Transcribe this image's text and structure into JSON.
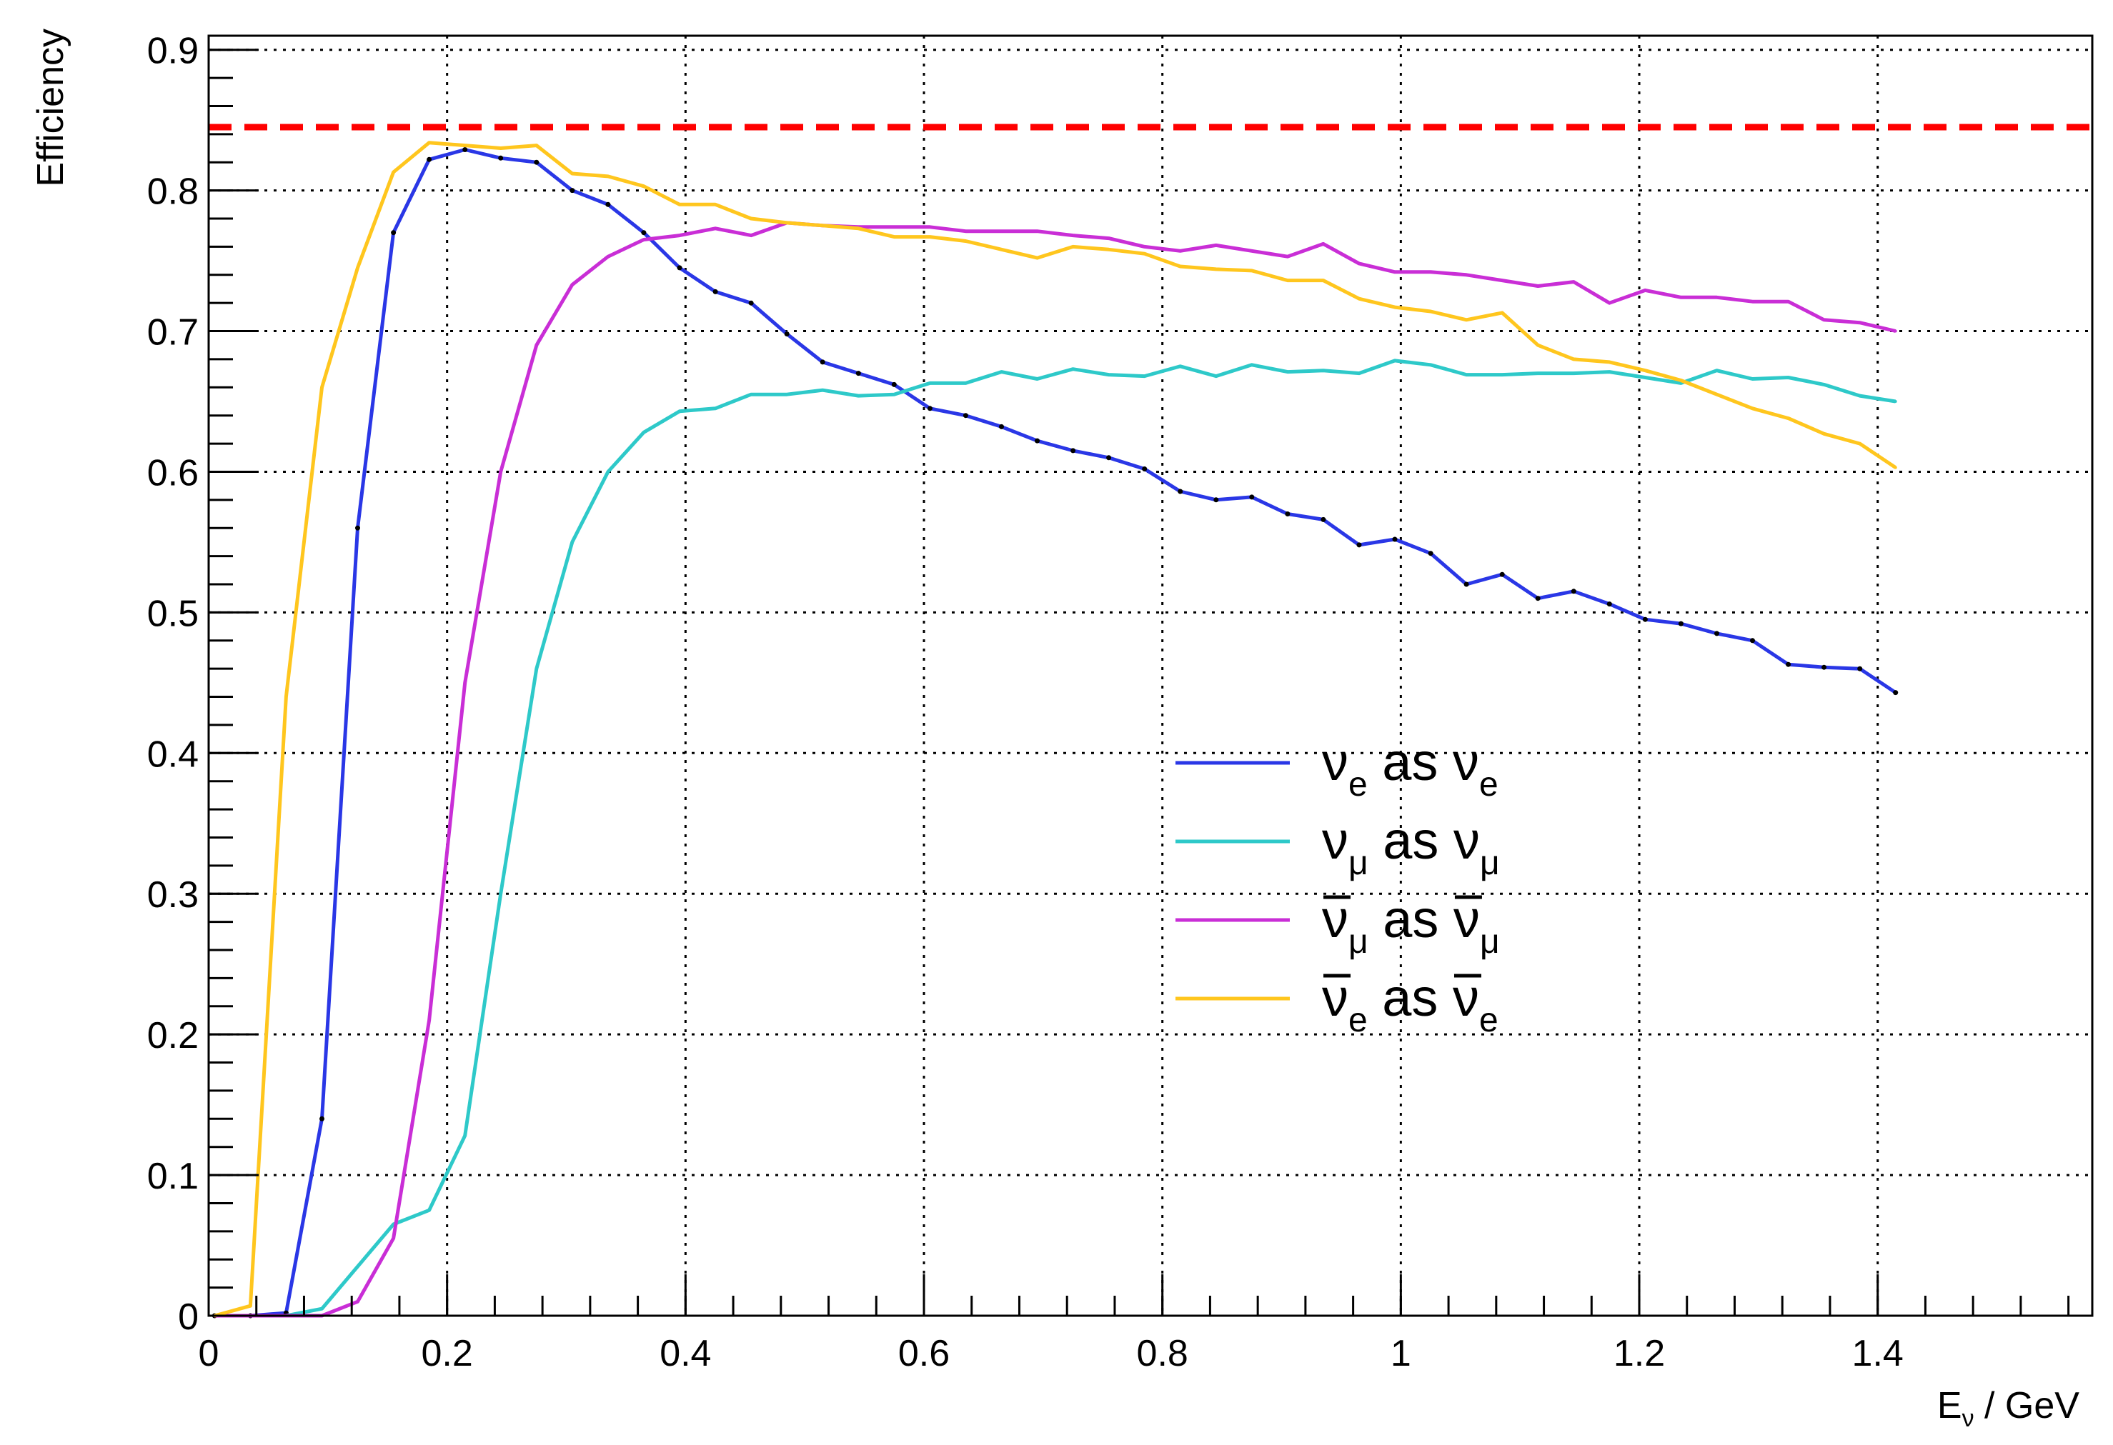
{
  "chart_data": {
    "type": "line",
    "title": "",
    "xlabel": "E",
    "xlabel_sub": "ν",
    "xlabel_unit": " / GeV",
    "ylabel": "Efficiency",
    "xlim": [
      0,
      1.58
    ],
    "ylim": [
      0,
      0.91
    ],
    "x_ticks": [
      "0",
      "0.2",
      "0.4",
      "0.6",
      "0.8",
      "1",
      "1.2",
      "1.4"
    ],
    "y_ticks": [
      "0",
      "0.1",
      "0.2",
      "0.3",
      "0.4",
      "0.5",
      "0.6",
      "0.7",
      "0.8",
      "0.9"
    ],
    "grid": true,
    "legend_position": "center-right",
    "reference_line": {
      "y": 0.845,
      "color": "#ff0000",
      "style": "dashed"
    },
    "series": [
      {
        "name": "νe as νe",
        "name_parts": {
          "sym": "ν",
          "sub": "e",
          "mid": " as ",
          "sym2": "ν",
          "sub2": "e",
          "bar": false
        },
        "color": "#2a37e6",
        "x": [
          0.005,
          0.035,
          0.065,
          0.095,
          0.125,
          0.155,
          0.185,
          0.215,
          0.245,
          0.275,
          0.305,
          0.335,
          0.365,
          0.395,
          0.425,
          0.455,
          0.485,
          0.515,
          0.545,
          0.575,
          0.605,
          0.635,
          0.665,
          0.695,
          0.725,
          0.755,
          0.785,
          0.815,
          0.845,
          0.875,
          0.905,
          0.935,
          0.965,
          0.995,
          1.025,
          1.055,
          1.085,
          1.115,
          1.145,
          1.175,
          1.205,
          1.235,
          1.265,
          1.295,
          1.325,
          1.355,
          1.385,
          1.415
        ],
        "y": [
          0,
          0,
          0.002,
          0.14,
          0.56,
          0.77,
          0.822,
          0.829,
          0.823,
          0.82,
          0.8,
          0.79,
          0.77,
          0.745,
          0.728,
          0.72,
          0.698,
          0.678,
          0.67,
          0.662,
          0.645,
          0.64,
          0.632,
          0.622,
          0.615,
          0.61,
          0.602,
          0.586,
          0.58,
          0.582,
          0.57,
          0.566,
          0.548,
          0.552,
          0.542,
          0.52,
          0.527,
          0.51,
          0.515,
          0.506,
          0.495,
          0.492,
          0.485,
          0.48,
          0.463,
          0.461,
          0.46,
          0.443
        ]
      },
      {
        "name": "νμ as νμ",
        "name_parts": {
          "sym": "ν",
          "sub": "μ",
          "mid": " as ",
          "sym2": "ν",
          "sub2": "μ",
          "bar": false
        },
        "color": "#2ec9c9",
        "x": [
          0.005,
          0.035,
          0.065,
          0.095,
          0.125,
          0.155,
          0.185,
          0.215,
          0.245,
          0.275,
          0.305,
          0.335,
          0.365,
          0.395,
          0.425,
          0.455,
          0.485,
          0.515,
          0.545,
          0.575,
          0.605,
          0.635,
          0.665,
          0.695,
          0.725,
          0.755,
          0.785,
          0.815,
          0.845,
          0.875,
          0.905,
          0.935,
          0.965,
          0.995,
          1.025,
          1.055,
          1.085,
          1.115,
          1.145,
          1.175,
          1.205,
          1.235,
          1.265,
          1.295,
          1.325,
          1.355,
          1.385,
          1.415
        ],
        "y": [
          0,
          0,
          0,
          0.005,
          0.035,
          0.065,
          0.075,
          0.128,
          0.3,
          0.46,
          0.55,
          0.6,
          0.628,
          0.643,
          0.645,
          0.655,
          0.655,
          0.658,
          0.654,
          0.655,
          0.663,
          0.663,
          0.671,
          0.666,
          0.673,
          0.669,
          0.668,
          0.675,
          0.668,
          0.676,
          0.671,
          0.672,
          0.67,
          0.679,
          0.676,
          0.669,
          0.669,
          0.67,
          0.67,
          0.671,
          0.667,
          0.663,
          0.672,
          0.666,
          0.667,
          0.662,
          0.654,
          0.65
        ]
      },
      {
        "name": "ν̄μ as ν̄μ",
        "name_parts": {
          "sym": "ν",
          "sub": "μ",
          "mid": " as ",
          "sym2": "ν",
          "sub2": "μ",
          "bar": true
        },
        "color": "#c92ed6",
        "x": [
          0.005,
          0.035,
          0.065,
          0.095,
          0.125,
          0.155,
          0.185,
          0.215,
          0.245,
          0.275,
          0.305,
          0.335,
          0.365,
          0.395,
          0.425,
          0.455,
          0.485,
          0.515,
          0.545,
          0.575,
          0.605,
          0.635,
          0.665,
          0.695,
          0.725,
          0.755,
          0.785,
          0.815,
          0.845,
          0.875,
          0.905,
          0.935,
          0.965,
          0.995,
          1.025,
          1.055,
          1.085,
          1.115,
          1.145,
          1.175,
          1.205,
          1.235,
          1.265,
          1.295,
          1.325,
          1.355,
          1.385,
          1.415
        ],
        "y": [
          0,
          0,
          0,
          0,
          0.01,
          0.055,
          0.21,
          0.45,
          0.6,
          0.69,
          0.733,
          0.753,
          0.765,
          0.768,
          0.773,
          0.768,
          0.777,
          0.775,
          0.774,
          0.774,
          0.774,
          0.771,
          0.771,
          0.771,
          0.768,
          0.766,
          0.76,
          0.757,
          0.761,
          0.757,
          0.753,
          0.762,
          0.748,
          0.742,
          0.742,
          0.74,
          0.736,
          0.732,
          0.735,
          0.72,
          0.729,
          0.724,
          0.724,
          0.721,
          0.721,
          0.708,
          0.706,
          0.7
        ]
      },
      {
        "name": "ν̄e as ν̄e",
        "name_parts": {
          "sym": "ν",
          "sub": "e",
          "mid": " as ",
          "sym2": "ν",
          "sub2": "e",
          "bar": true
        },
        "color": "#ffc61e",
        "x": [
          0.005,
          0.035,
          0.065,
          0.095,
          0.125,
          0.155,
          0.185,
          0.215,
          0.245,
          0.275,
          0.305,
          0.335,
          0.365,
          0.395,
          0.425,
          0.455,
          0.485,
          0.515,
          0.545,
          0.575,
          0.605,
          0.635,
          0.665,
          0.695,
          0.725,
          0.755,
          0.785,
          0.815,
          0.845,
          0.875,
          0.905,
          0.935,
          0.965,
          0.995,
          1.025,
          1.055,
          1.085,
          1.115,
          1.145,
          1.175,
          1.205,
          1.235,
          1.265,
          1.295,
          1.325,
          1.355,
          1.385,
          1.415
        ],
        "y": [
          0,
          0.007,
          0.44,
          0.66,
          0.745,
          0.813,
          0.834,
          0.832,
          0.83,
          0.832,
          0.812,
          0.81,
          0.803,
          0.79,
          0.79,
          0.78,
          0.777,
          0.775,
          0.773,
          0.767,
          0.767,
          0.764,
          0.758,
          0.752,
          0.76,
          0.758,
          0.755,
          0.746,
          0.744,
          0.743,
          0.736,
          0.736,
          0.723,
          0.717,
          0.714,
          0.708,
          0.713,
          0.69,
          0.68,
          0.678,
          0.672,
          0.665,
          0.655,
          0.645,
          0.638,
          0.627,
          0.62,
          0.603
        ]
      }
    ]
  }
}
